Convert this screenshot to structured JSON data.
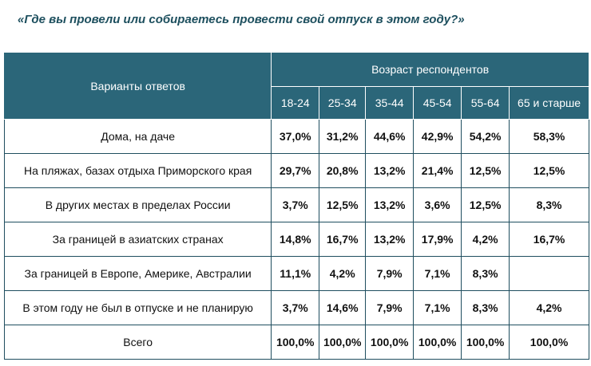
{
  "title": "«Где вы провели или собираетесь провести свой отпуск в этом году?»",
  "table": {
    "options_header": "Варианты ответов",
    "age_header": "Возраст респондентов",
    "ages": [
      "18-24",
      "25-34",
      "35-44",
      "45-54",
      "55-64",
      "65 и старше"
    ],
    "rows": [
      {
        "label": "Дома, на даче",
        "values": [
          "37,0%",
          "31,2%",
          "44,6%",
          "42,9%",
          "54,2%",
          "58,3%"
        ]
      },
      {
        "label": "На пляжах, базах отдыха Приморского края",
        "values": [
          "29,7%",
          "20,8%",
          "13,2%",
          "21,4%",
          "12,5%",
          "12,5%"
        ]
      },
      {
        "label": "В других местах в пределах России",
        "values": [
          "3,7%",
          "12,5%",
          "13,2%",
          "3,6%",
          "12,5%",
          "8,3%"
        ]
      },
      {
        "label": "За границей в азиатских странах",
        "values": [
          "14,8%",
          "16,7%",
          "13,2%",
          "17,9%",
          "4,2%",
          "16,7%"
        ]
      },
      {
        "label": "За границей в Европе, Америке, Австралии",
        "values": [
          "11,1%",
          "4,2%",
          "7,9%",
          "7,1%",
          "8,3%",
          null
        ]
      },
      {
        "label": "В этом году не был в отпуске и не планирую",
        "values": [
          "3,7%",
          "14,6%",
          "7,9%",
          "7,1%",
          "8,3%",
          "4,2%"
        ]
      },
      {
        "label": "Всего",
        "values": [
          "100,0%",
          "100,0%",
          "100,0%",
          "100,0%",
          "100,0%",
          "100,0%"
        ]
      }
    ]
  }
}
